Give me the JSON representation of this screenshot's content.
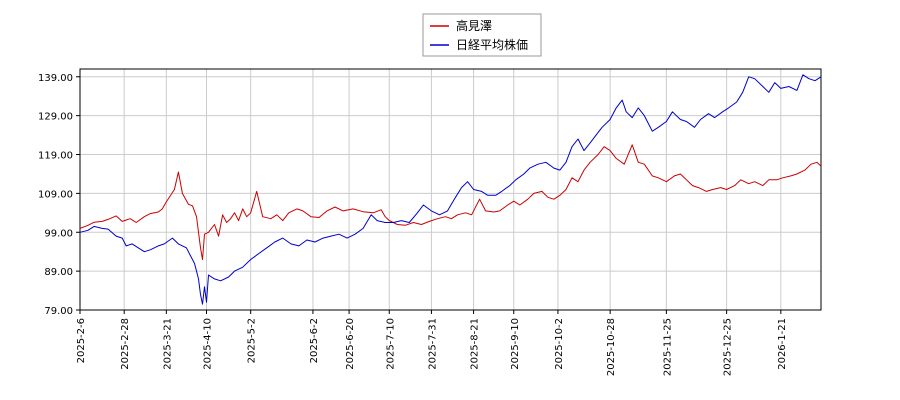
{
  "chart_data": {
    "type": "line",
    "title": "",
    "xlabel": "",
    "ylabel": "",
    "ylim": [
      79,
      141
    ],
    "y_ticks": [
      "79.00",
      "89.00",
      "99.00",
      "109.00",
      "119.00",
      "129.00",
      "139.00"
    ],
    "x_ticks": [
      "2025-2-6",
      "2025-2-28",
      "2025-3-21",
      "2025-4-10",
      "2025-5-2",
      "2025-6-2",
      "2025-6-20",
      "2025-7-10",
      "2025-7-31",
      "2025-8-21",
      "2025-9-10",
      "2025-10-2",
      "2025-10-28",
      "2025-11-25",
      "2025-12-25",
      "2026-1-21"
    ],
    "x_range": [
      "2025-2-6",
      "2026-2-10"
    ],
    "grid": true,
    "legend_position": "top-center",
    "series": [
      {
        "name": "高見澤",
        "color": "#cc0000",
        "points": [
          [
            "2025-2-6",
            100
          ],
          [
            "2025-2-10",
            100.8
          ],
          [
            "2025-2-13",
            101.6
          ],
          [
            "2025-2-17",
            101.8
          ],
          [
            "2025-2-20",
            102.3
          ],
          [
            "2025-2-24",
            103.2
          ],
          [
            "2025-2-27",
            101.8
          ],
          [
            "2025-3-3",
            102.5
          ],
          [
            "2025-3-6",
            101.5
          ],
          [
            "2025-3-10",
            103
          ],
          [
            "2025-3-13",
            103.8
          ],
          [
            "2025-3-17",
            104.2
          ],
          [
            "2025-3-19",
            105
          ],
          [
            "2025-3-21",
            106.8
          ],
          [
            "2025-3-25",
            110
          ],
          [
            "2025-3-27",
            114.5
          ],
          [
            "2025-3-29",
            109
          ],
          [
            "2025-4-1",
            106.2
          ],
          [
            "2025-4-3",
            105.8
          ],
          [
            "2025-4-5",
            103
          ],
          [
            "2025-4-7",
            95
          ],
          [
            "2025-4-8",
            92
          ],
          [
            "2025-4-9",
            98.5
          ],
          [
            "2025-4-11",
            99
          ],
          [
            "2025-4-14",
            101
          ],
          [
            "2025-4-16",
            98
          ],
          [
            "2025-4-18",
            103.5
          ],
          [
            "2025-4-20",
            101.5
          ],
          [
            "2025-4-22",
            102.5
          ],
          [
            "2025-4-24",
            104
          ],
          [
            "2025-4-26",
            102
          ],
          [
            "2025-4-28",
            105
          ],
          [
            "2025-4-30",
            103
          ],
          [
            "2025-5-2",
            104
          ],
          [
            "2025-5-5",
            109.5
          ],
          [
            "2025-5-8",
            103
          ],
          [
            "2025-5-12",
            102.5
          ],
          [
            "2025-5-15",
            103.5
          ],
          [
            "2025-5-18",
            102
          ],
          [
            "2025-5-21",
            104
          ],
          [
            "2025-5-25",
            105
          ],
          [
            "2025-5-28",
            104.5
          ],
          [
            "2025-6-1",
            103
          ],
          [
            "2025-6-5",
            102.8
          ],
          [
            "2025-6-9",
            104.5
          ],
          [
            "2025-6-13",
            105.5
          ],
          [
            "2025-6-17",
            104.5
          ],
          [
            "2025-6-22",
            105
          ],
          [
            "2025-6-27",
            104.3
          ],
          [
            "2025-7-2",
            104
          ],
          [
            "2025-7-6",
            104.8
          ],
          [
            "2025-7-8",
            103
          ],
          [
            "2025-7-10",
            102
          ],
          [
            "2025-7-14",
            101
          ],
          [
            "2025-7-18",
            100.8
          ],
          [
            "2025-7-22",
            101.5
          ],
          [
            "2025-7-26",
            101
          ],
          [
            "2025-7-30",
            101.8
          ],
          [
            "2025-8-3",
            102.5
          ],
          [
            "2025-8-7",
            103
          ],
          [
            "2025-8-10",
            102.5
          ],
          [
            "2025-8-13",
            103.5
          ],
          [
            "2025-8-17",
            104
          ],
          [
            "2025-8-20",
            103.5
          ],
          [
            "2025-8-24",
            107.5
          ],
          [
            "2025-8-27",
            104.5
          ],
          [
            "2025-8-31",
            104.2
          ],
          [
            "2025-9-3",
            104.5
          ],
          [
            "2025-9-7",
            106
          ],
          [
            "2025-9-10",
            107
          ],
          [
            "2025-9-13",
            106
          ],
          [
            "2025-9-17",
            107.5
          ],
          [
            "2025-9-20",
            109
          ],
          [
            "2025-9-24",
            109.5
          ],
          [
            "2025-9-27",
            108
          ],
          [
            "2025-9-30",
            107.5
          ],
          [
            "2025-10-3",
            108.5
          ],
          [
            "2025-10-6",
            110
          ],
          [
            "2025-10-9",
            113
          ],
          [
            "2025-10-12",
            112
          ],
          [
            "2025-10-15",
            115
          ],
          [
            "2025-10-18",
            117
          ],
          [
            "2025-10-22",
            119
          ],
          [
            "2025-10-25",
            121
          ],
          [
            "2025-10-28",
            120
          ],
          [
            "2025-10-31",
            118
          ],
          [
            "2025-11-4",
            116.5
          ],
          [
            "2025-11-8",
            121.5
          ],
          [
            "2025-11-11",
            117
          ],
          [
            "2025-11-14",
            116.5
          ],
          [
            "2025-11-18",
            113.5
          ],
          [
            "2025-11-21",
            113
          ],
          [
            "2025-11-25",
            112
          ],
          [
            "2025-11-29",
            113.5
          ],
          [
            "2025-12-2",
            114
          ],
          [
            "2025-12-5",
            112.5
          ],
          [
            "2025-12-8",
            111
          ],
          [
            "2025-12-11",
            110.5
          ],
          [
            "2025-12-15",
            109.5
          ],
          [
            "2025-12-18",
            110
          ],
          [
            "2025-12-22",
            110.5
          ],
          [
            "2025-12-25",
            110
          ],
          [
            "2025-12-29",
            111
          ],
          [
            "2026-1-1",
            112.5
          ],
          [
            "2026-1-5",
            111.5
          ],
          [
            "2026-1-8",
            112
          ],
          [
            "2026-1-12",
            111
          ],
          [
            "2026-1-15",
            112.5
          ],
          [
            "2026-1-19",
            112.5
          ],
          [
            "2026-1-22",
            113
          ],
          [
            "2026-1-26",
            113.5
          ],
          [
            "2026-1-29",
            114
          ],
          [
            "2026-2-2",
            115
          ],
          [
            "2026-2-5",
            116.5
          ],
          [
            "2026-2-8",
            117
          ],
          [
            "2026-2-10",
            116
          ]
        ]
      },
      {
        "name": "日経平均株価",
        "color": "#0000cc",
        "points": [
          [
            "2025-2-6",
            99
          ],
          [
            "2025-2-10",
            99.5
          ],
          [
            "2025-2-13",
            100.5
          ],
          [
            "2025-2-17",
            100
          ],
          [
            "2025-2-20",
            99.8
          ],
          [
            "2025-2-24",
            98
          ],
          [
            "2025-2-27",
            97.5
          ],
          [
            "2025-3-1",
            95.5
          ],
          [
            "2025-3-4",
            96
          ],
          [
            "2025-3-7",
            95
          ],
          [
            "2025-3-10",
            94
          ],
          [
            "2025-3-13",
            94.5
          ],
          [
            "2025-3-17",
            95.5
          ],
          [
            "2025-3-20",
            96
          ],
          [
            "2025-3-24",
            97.5
          ],
          [
            "2025-3-27",
            96
          ],
          [
            "2025-3-31",
            95
          ],
          [
            "2025-4-2",
            93
          ],
          [
            "2025-4-4",
            91
          ],
          [
            "2025-4-6",
            87
          ],
          [
            "2025-4-7",
            83
          ],
          [
            "2025-4-8",
            80.5
          ],
          [
            "2025-4-9",
            85
          ],
          [
            "2025-4-10",
            81
          ],
          [
            "2025-4-11",
            88
          ],
          [
            "2025-4-14",
            87
          ],
          [
            "2025-4-17",
            86.5
          ],
          [
            "2025-4-21",
            87.5
          ],
          [
            "2025-4-24",
            89
          ],
          [
            "2025-4-28",
            90
          ],
          [
            "2025-5-2",
            92
          ],
          [
            "2025-5-6",
            93.5
          ],
          [
            "2025-5-10",
            95
          ],
          [
            "2025-5-14",
            96.5
          ],
          [
            "2025-5-18",
            97.5
          ],
          [
            "2025-5-22",
            96
          ],
          [
            "2025-5-26",
            95.5
          ],
          [
            "2025-5-30",
            97
          ],
          [
            "2025-6-3",
            96.5
          ],
          [
            "2025-6-7",
            97.5
          ],
          [
            "2025-6-11",
            98
          ],
          [
            "2025-6-15",
            98.5
          ],
          [
            "2025-6-19",
            97.5
          ],
          [
            "2025-6-23",
            98.5
          ],
          [
            "2025-6-27",
            100
          ],
          [
            "2025-7-1",
            103.5
          ],
          [
            "2025-7-4",
            102
          ],
          [
            "2025-7-8",
            101.5
          ],
          [
            "2025-7-12",
            101.5
          ],
          [
            "2025-7-16",
            102
          ],
          [
            "2025-7-20",
            101.5
          ],
          [
            "2025-7-24",
            104
          ],
          [
            "2025-7-27",
            106
          ],
          [
            "2025-7-31",
            104.5
          ],
          [
            "2025-8-4",
            103.5
          ],
          [
            "2025-8-8",
            104.5
          ],
          [
            "2025-8-12",
            108
          ],
          [
            "2025-8-15",
            110.5
          ],
          [
            "2025-8-18",
            112
          ],
          [
            "2025-8-21",
            110
          ],
          [
            "2025-8-25",
            109.5
          ],
          [
            "2025-8-28",
            108.5
          ],
          [
            "2025-9-1",
            108.5
          ],
          [
            "2025-9-4",
            109.5
          ],
          [
            "2025-9-8",
            111
          ],
          [
            "2025-9-11",
            112.5
          ],
          [
            "2025-9-15",
            114
          ],
          [
            "2025-9-18",
            115.5
          ],
          [
            "2025-9-22",
            116.5
          ],
          [
            "2025-9-26",
            117
          ],
          [
            "2025-9-30",
            115.5
          ],
          [
            "2025-10-3",
            115
          ],
          [
            "2025-10-6",
            117
          ],
          [
            "2025-10-9",
            121
          ],
          [
            "2025-10-12",
            123
          ],
          [
            "2025-10-15",
            120
          ],
          [
            "2025-10-18",
            122
          ],
          [
            "2025-10-21",
            124
          ],
          [
            "2025-10-24",
            126
          ],
          [
            "2025-10-28",
            128
          ],
          [
            "2025-10-31",
            131
          ],
          [
            "2025-11-3",
            133
          ],
          [
            "2025-11-5",
            130
          ],
          [
            "2025-11-8",
            128.5
          ],
          [
            "2025-11-11",
            131
          ],
          [
            "2025-11-14",
            129
          ],
          [
            "2025-11-18",
            125
          ],
          [
            "2025-11-21",
            126
          ],
          [
            "2025-11-25",
            127.5
          ],
          [
            "2025-11-28",
            130
          ],
          [
            "2025-12-2",
            128
          ],
          [
            "2025-12-5",
            127.5
          ],
          [
            "2025-12-9",
            126
          ],
          [
            "2025-12-12",
            128
          ],
          [
            "2025-12-16",
            129.5
          ],
          [
            "2025-12-19",
            128.5
          ],
          [
            "2025-12-23",
            130
          ],
          [
            "2025-12-26",
            131
          ],
          [
            "2025-12-30",
            132.5
          ],
          [
            "2026-1-2",
            135
          ],
          [
            "2026-1-5",
            139
          ],
          [
            "2026-1-8",
            138.5
          ],
          [
            "2026-1-12",
            136.5
          ],
          [
            "2026-1-15",
            135
          ],
          [
            "2026-1-18",
            137.5
          ],
          [
            "2026-1-21",
            136
          ],
          [
            "2026-1-25",
            136.5
          ],
          [
            "2026-1-29",
            135.5
          ],
          [
            "2026-2-1",
            139.5
          ],
          [
            "2026-2-4",
            138.5
          ],
          [
            "2026-2-7",
            138
          ],
          [
            "2026-2-10",
            139
          ]
        ]
      }
    ]
  }
}
